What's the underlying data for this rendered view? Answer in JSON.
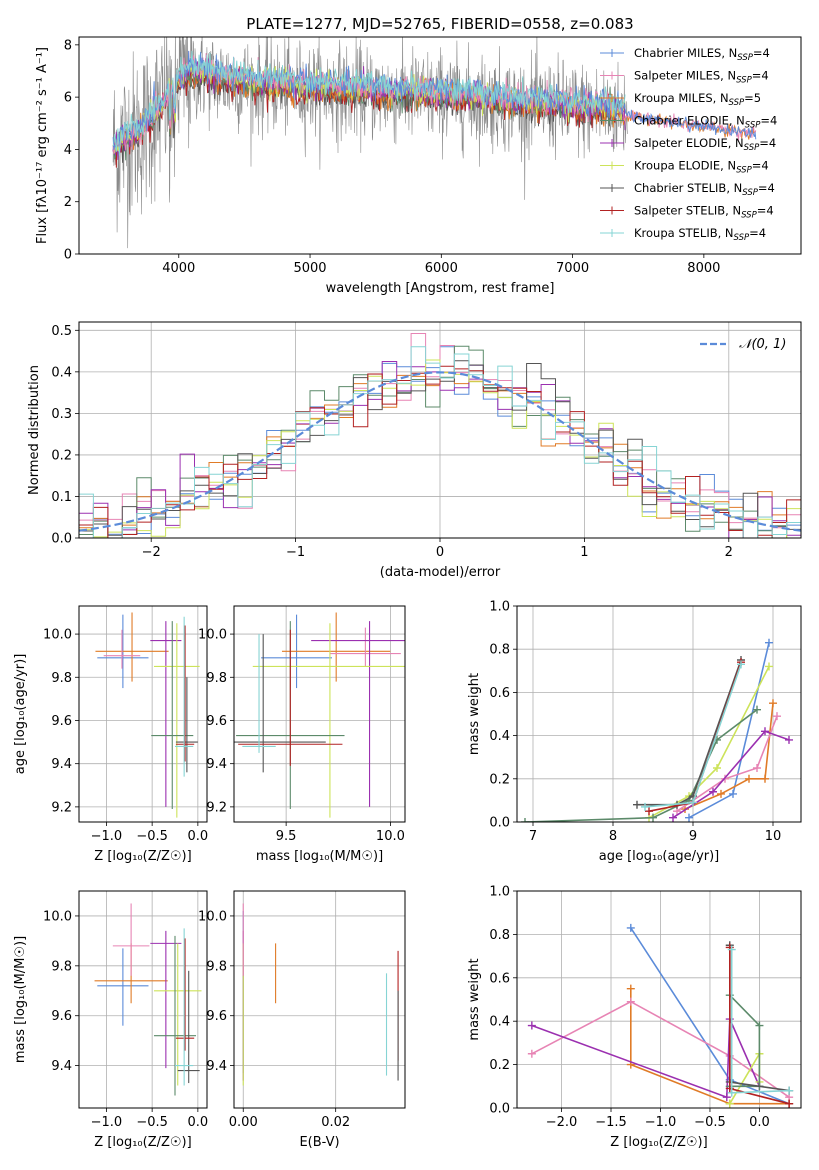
{
  "figure_title": "PLATE=1277, MJD=52765, FIBERID=0558, z=0.083",
  "colors": {
    "chabrier_miles": "#5b8bd9",
    "salpeter_miles": "#e784b4",
    "kroupa_miles": "#e07b27",
    "chabrier_elodie": "#5c8a6a",
    "salpeter_elodie": "#9b30b0",
    "kroupa_elodie": "#cde35a",
    "chabrier_stelib": "#555555",
    "salpeter_stelib": "#b22222",
    "kroupa_stelib": "#86d4d4",
    "data": "#8a8a8a",
    "model_cyan": "#7fd6d6",
    "normal_curve": "#5b8bd9",
    "grid": "#b0b0b0"
  },
  "chart_data": [
    {
      "type": "line",
      "panel": "spectrum",
      "title": "PLATE=1277, MJD=52765, FIBERID=0558, z=0.083",
      "xlabel": "wavelength [Angstrom, rest frame]",
      "ylabel": "Flux [fλ10⁻¹⁷ erg cm⁻² s⁻¹ A⁻¹]",
      "xlim": [
        3240,
        8740
      ],
      "ylim": [
        0,
        8.3
      ],
      "xticks": [
        "4000",
        "5000",
        "6000",
        "7000",
        "8000"
      ],
      "yticks": [
        "0",
        "2",
        "4",
        "6",
        "8"
      ],
      "legend_position": "right",
      "legend": [
        {
          "label": "Chabrier MILES, N",
          "sub": "SSP",
          "eq": "=4",
          "color_key": "chabrier_miles"
        },
        {
          "label": "Salpeter MILES, N",
          "sub": "SSP",
          "eq": "=4",
          "color_key": "salpeter_miles"
        },
        {
          "label": "Kroupa MILES, N",
          "sub": "SSP",
          "eq": "=5",
          "color_key": "kroupa_miles"
        },
        {
          "label": "Chabrier ELODIE, N",
          "sub": "SSP",
          "eq": "=4",
          "color_key": "chabrier_elodie"
        },
        {
          "label": "Salpeter ELODIE, N",
          "sub": "SSP",
          "eq": "=4",
          "color_key": "salpeter_elodie"
        },
        {
          "label": "Kroupa ELODIE, N",
          "sub": "SSP",
          "eq": "=4",
          "color_key": "kroupa_elodie"
        },
        {
          "label": "Chabrier STELIB, N",
          "sub": "SSP",
          "eq": "=4",
          "color_key": "chabrier_stelib"
        },
        {
          "label": "Salpeter STELIB, N",
          "sub": "SSP",
          "eq": "=4",
          "color_key": "salpeter_stelib"
        },
        {
          "label": "Kroupa STELIB, N",
          "sub": "SSP",
          "eq": "=4",
          "color_key": "kroupa_stelib"
        }
      ],
      "continuum_x": [
        3500,
        3600,
        3700,
        3800,
        3900,
        4000,
        4100,
        4300,
        4500,
        4700,
        5000,
        5300,
        5600,
        6000,
        6300,
        6600,
        6900,
        7200,
        7400
      ],
      "continuum_y": [
        4.0,
        4.4,
        4.6,
        5.2,
        5.8,
        6.6,
        6.9,
        6.7,
        6.5,
        6.4,
        6.3,
        6.2,
        6.1,
        6.0,
        5.9,
        5.7,
        5.6,
        5.5,
        5.4
      ]
    },
    {
      "type": "bar",
      "panel": "residual_histogram",
      "xlabel": "(data-model)/error",
      "ylabel": "Normed distribution",
      "xlim": [
        -2.5,
        2.5
      ],
      "ylim": [
        0,
        0.52
      ],
      "xticks": [
        "−2",
        "−1",
        "0",
        "1",
        "2"
      ],
      "yticks": [
        "0.0",
        "0.1",
        "0.2",
        "0.3",
        "0.4",
        "0.5"
      ],
      "legend": [
        {
          "label": "𝒩(0, 1)",
          "color_key": "normal_curve",
          "style": "dashed"
        }
      ],
      "legend_position": "top-right",
      "bin_width": 0.1,
      "normal_mean": 0,
      "normal_sigma": 1
    },
    {
      "type": "scatter",
      "panel": "age_vs_Z",
      "xlabel": "Z [log₁₀(Z/Z☉)]",
      "ylabel": "age  [log₁₀(age/yr)]",
      "xlim": [
        -1.3,
        0.1
      ],
      "ylim": [
        9.13,
        10.13
      ],
      "xticks": [
        "−1.0",
        "−0.5",
        "0.0"
      ],
      "yticks": [
        "9.2",
        "9.4",
        "9.6",
        "9.8",
        "10.0"
      ],
      "points": [
        {
          "x": -0.82,
          "y": 9.89,
          "xerr": 0.28,
          "yerr_lo": 0.14,
          "yerr_hi": 0.2,
          "color_key": "chabrier_miles"
        },
        {
          "x": -0.72,
          "y": 9.92,
          "xerr": 0.4,
          "yerr_lo": 0.14,
          "yerr_hi": 0.18,
          "color_key": "kroupa_miles"
        },
        {
          "x": -0.83,
          "y": 9.9,
          "xerr": 0.2,
          "yerr_lo": 0.06,
          "yerr_hi": 0.12,
          "color_key": "salpeter_miles"
        },
        {
          "x": -0.35,
          "y": 9.97,
          "xerr": 0.17,
          "yerr_lo": 0.77,
          "yerr_hi": 0.09,
          "color_key": "salpeter_elodie"
        },
        {
          "x": -0.23,
          "y": 9.85,
          "xerr": 0.25,
          "yerr_lo": 0.7,
          "yerr_hi": 0.2,
          "color_key": "kroupa_elodie"
        },
        {
          "x": -0.28,
          "y": 9.53,
          "xerr": 0.23,
          "yerr_lo": 0.34,
          "yerr_hi": 0.53,
          "color_key": "chabrier_elodie"
        },
        {
          "x": -0.12,
          "y": 9.5,
          "xerr": 0.12,
          "yerr_lo": 0.14,
          "yerr_hi": 0.3,
          "color_key": "chabrier_stelib"
        },
        {
          "x": -0.14,
          "y": 9.49,
          "xerr": 0.1,
          "yerr_lo": 0.08,
          "yerr_hi": 0.55,
          "color_key": "salpeter_stelib"
        },
        {
          "x": -0.15,
          "y": 9.48,
          "xerr": 0.1,
          "yerr_lo": 0.14,
          "yerr_hi": 0.6,
          "color_key": "kroupa_stelib"
        }
      ]
    },
    {
      "type": "scatter",
      "panel": "age_vs_mass",
      "xlabel": "mass [log₁₀(M/M☉)]",
      "ylabel": "",
      "xlim": [
        9.25,
        10.07
      ],
      "ylim": [
        9.13,
        10.13
      ],
      "xticks": [
        "9.5",
        "10.0"
      ],
      "yticks": [
        "9.2",
        "9.4",
        "9.6",
        "9.8",
        "10.0"
      ],
      "points": [
        {
          "x": 9.55,
          "y": 9.89,
          "xerr": 0.17,
          "yerr_lo": 0.14,
          "yerr_hi": 0.2,
          "color_key": "chabrier_miles"
        },
        {
          "x": 9.74,
          "y": 9.92,
          "xerr": 0.26,
          "yerr_lo": 0.14,
          "yerr_hi": 0.18,
          "color_key": "kroupa_miles"
        },
        {
          "x": 9.88,
          "y": 9.91,
          "xerr": 0.17,
          "yerr_lo": 0.06,
          "yerr_hi": 0.12,
          "color_key": "salpeter_miles"
        },
        {
          "x": 9.9,
          "y": 9.97,
          "xerr": 0.28,
          "yerr_lo": 0.77,
          "yerr_hi": 0.09,
          "color_key": "salpeter_elodie"
        },
        {
          "x": 9.71,
          "y": 9.85,
          "xerr": 0.37,
          "yerr_lo": 0.7,
          "yerr_hi": 0.2,
          "color_key": "kroupa_elodie"
        },
        {
          "x": 9.52,
          "y": 9.53,
          "xerr": 0.26,
          "yerr_lo": 0.34,
          "yerr_hi": 0.53,
          "color_key": "chabrier_elodie"
        },
        {
          "x": 9.39,
          "y": 9.5,
          "xerr": 0.3,
          "yerr_lo": 0.14,
          "yerr_hi": 0.5,
          "color_key": "chabrier_stelib"
        },
        {
          "x": 9.52,
          "y": 9.49,
          "xerr": 0.25,
          "yerr_lo": 0.1,
          "yerr_hi": 0.53,
          "color_key": "salpeter_stelib"
        },
        {
          "x": 9.37,
          "y": 9.48,
          "xerr": 0.08,
          "yerr_lo": 0.03,
          "yerr_hi": 0.52,
          "color_key": "kroupa_stelib"
        }
      ]
    },
    {
      "type": "line",
      "panel": "mass_weight_vs_age",
      "xlabel": "age  [log₁₀(age/yr)]",
      "ylabel": "mass weight",
      "xlim": [
        6.8,
        10.35
      ],
      "ylim": [
        0,
        1.0
      ],
      "xticks": [
        "7",
        "8",
        "9",
        "10"
      ],
      "yticks": [
        "0.0",
        "0.2",
        "0.4",
        "0.6",
        "0.8",
        "1.0"
      ],
      "series": [
        {
          "color_key": "chabrier_miles",
          "x": [
            8.95,
            9.5,
            9.95
          ],
          "y": [
            0.02,
            0.13,
            0.83
          ]
        },
        {
          "color_key": "kroupa_miles",
          "x": [
            8.9,
            9.35,
            9.7,
            9.9,
            10.0
          ],
          "y": [
            0.06,
            0.13,
            0.2,
            0.2,
            0.55
          ]
        },
        {
          "color_key": "salpeter_miles",
          "x": [
            8.8,
            9.4,
            9.8,
            10.05
          ],
          "y": [
            0.05,
            0.2,
            0.25,
            0.49
          ]
        },
        {
          "color_key": "salpeter_elodie",
          "x": [
            8.75,
            9.25,
            9.9,
            10.2
          ],
          "y": [
            0.02,
            0.14,
            0.42,
            0.38
          ]
        },
        {
          "color_key": "kroupa_elodie",
          "x": [
            8.45,
            8.95,
            9.3,
            9.95
          ],
          "y": [
            0.02,
            0.12,
            0.25,
            0.72
          ]
        },
        {
          "color_key": "chabrier_elodie",
          "x": [
            6.9,
            8.5,
            8.95,
            9.3,
            9.8
          ],
          "y": [
            0.0,
            0.02,
            0.1,
            0.38,
            0.52
          ]
        },
        {
          "color_key": "chabrier_stelib",
          "x": [
            8.3,
            8.8,
            9.0,
            9.6
          ],
          "y": [
            0.08,
            0.08,
            0.12,
            0.75
          ]
        },
        {
          "color_key": "salpeter_stelib",
          "x": [
            8.45,
            9.0,
            9.6
          ],
          "y": [
            0.05,
            0.09,
            0.74
          ]
        },
        {
          "color_key": "kroupa_stelib",
          "x": [
            8.4,
            9.0,
            9.6
          ],
          "y": [
            0.07,
            0.09,
            0.73
          ]
        }
      ]
    },
    {
      "type": "scatter",
      "panel": "mass_vs_Z",
      "xlabel": "Z [log₁₀(Z/Z☉)]",
      "ylabel": "mass [log₁₀(M/M☉)]",
      "xlim": [
        -1.3,
        0.1
      ],
      "ylim": [
        9.23,
        10.1
      ],
      "xticks": [
        "−1.0",
        "−0.5",
        "0.0"
      ],
      "yticks": [
        "9.4",
        "9.6",
        "9.8",
        "10.0"
      ],
      "points": [
        {
          "x": -0.82,
          "y": 9.72,
          "xerr": 0.28,
          "yerr_lo": 0.16,
          "yerr_hi": 0.15,
          "color_key": "chabrier_miles"
        },
        {
          "x": -0.73,
          "y": 9.74,
          "xerr": 0.4,
          "yerr_lo": 0.09,
          "yerr_hi": 0.15,
          "color_key": "kroupa_miles"
        },
        {
          "x": -0.73,
          "y": 9.88,
          "xerr": 0.2,
          "yerr_lo": 0.12,
          "yerr_hi": 0.17,
          "color_key": "salpeter_miles"
        },
        {
          "x": -0.35,
          "y": 9.89,
          "xerr": 0.17,
          "yerr_lo": 0.5,
          "yerr_hi": 0.05,
          "color_key": "salpeter_elodie"
        },
        {
          "x": -0.22,
          "y": 9.7,
          "xerr": 0.26,
          "yerr_lo": 0.38,
          "yerr_hi": 0.19,
          "color_key": "kroupa_elodie"
        },
        {
          "x": -0.25,
          "y": 9.52,
          "xerr": 0.23,
          "yerr_lo": 0.24,
          "yerr_hi": 0.4,
          "color_key": "chabrier_elodie"
        },
        {
          "x": -0.1,
          "y": 9.38,
          "xerr": 0.12,
          "yerr_lo": 0.05,
          "yerr_hi": 0.4,
          "color_key": "chabrier_stelib"
        },
        {
          "x": -0.14,
          "y": 9.51,
          "xerr": 0.1,
          "yerr_lo": 0.05,
          "yerr_hi": 0.4,
          "color_key": "salpeter_stelib"
        },
        {
          "x": -0.15,
          "y": 9.4,
          "xerr": 0.1,
          "yerr_lo": 0.08,
          "yerr_hi": 0.55,
          "color_key": "kroupa_stelib"
        }
      ]
    },
    {
      "type": "scatter",
      "panel": "mass_vs_ebv",
      "xlabel": "E(B-V)",
      "ylabel": "",
      "xlim": [
        -0.002,
        0.035
      ],
      "ylim": [
        9.23,
        10.1
      ],
      "xticks": [
        "0.00",
        "0.02"
      ],
      "yticks": [
        "9.4",
        "9.6",
        "9.8",
        "10.0"
      ],
      "points": [
        {
          "x": 0.0,
          "y": 9.72,
          "yerr_lo": 0.35,
          "yerr_hi": 0.3,
          "color_key": "chabrier_miles"
        },
        {
          "x": 0.0,
          "y": 9.89,
          "yerr_lo": 0.55,
          "yerr_hi": 0.05,
          "color_key": "salpeter_elodie"
        },
        {
          "x": 0.0,
          "y": 9.7,
          "yerr_lo": 0.38,
          "yerr_hi": 0.19,
          "color_key": "kroupa_elodie"
        },
        {
          "x": 0.0,
          "y": 9.88,
          "yerr_lo": 0.12,
          "yerr_hi": 0.17,
          "color_key": "salpeter_miles"
        },
        {
          "x": 0.007,
          "y": 9.77,
          "yerr_lo": 0.12,
          "yerr_hi": 0.12,
          "color_key": "kroupa_miles"
        },
        {
          "x": 0.031,
          "y": 9.56,
          "yerr_lo": 0.2,
          "yerr_hi": 0.21,
          "color_key": "kroupa_stelib"
        },
        {
          "x": 0.0335,
          "y": 9.64,
          "yerr_lo": 0.22,
          "yerr_hi": 0.22,
          "color_key": "salpeter_stelib"
        },
        {
          "x": 0.0335,
          "y": 9.6,
          "yerr_lo": 0.26,
          "yerr_hi": 0.1,
          "color_key": "chabrier_stelib"
        }
      ]
    },
    {
      "type": "line",
      "panel": "mass_weight_vs_Z",
      "xlabel": "Z [log₁₀(Z/Z☉)]",
      "ylabel": "mass weight",
      "xlim": [
        -2.45,
        0.42
      ],
      "ylim": [
        0,
        1.0
      ],
      "xticks": [
        "−2.0",
        "−1.5",
        "−1.0",
        "−0.5",
        "0.0"
      ],
      "yticks": [
        "0.0",
        "0.2",
        "0.4",
        "0.6",
        "0.8",
        "1.0"
      ],
      "series": [
        {
          "color_key": "chabrier_miles",
          "x": [
            -1.3,
            -0.3,
            0.3
          ],
          "y": [
            0.83,
            0.13,
            0.02
          ]
        },
        {
          "color_key": "kroupa_miles",
          "x": [
            -1.3,
            -1.3,
            -0.3,
            0.3
          ],
          "y": [
            0.55,
            0.2,
            0.02,
            0.02
          ]
        },
        {
          "color_key": "salpeter_miles",
          "x": [
            -2.3,
            -1.3,
            -0.3,
            0.3
          ],
          "y": [
            0.25,
            0.49,
            0.24,
            0.05
          ]
        },
        {
          "color_key": "salpeter_elodie",
          "x": [
            -2.3,
            -0.33,
            -0.3,
            0.0
          ],
          "y": [
            0.38,
            0.05,
            0.41,
            0.1
          ]
        },
        {
          "color_key": "kroupa_elodie",
          "x": [
            -0.3,
            0.0,
            0.0
          ],
          "y": [
            0.02,
            0.25,
            0.12
          ]
        },
        {
          "color_key": "chabrier_elodie",
          "x": [
            -0.3,
            0.0,
            0.0,
            -0.3
          ],
          "y": [
            0.52,
            0.38,
            0.1,
            0.1
          ]
        },
        {
          "color_key": "chabrier_stelib",
          "x": [
            -0.3,
            -0.3,
            0.3
          ],
          "y": [
            0.75,
            0.12,
            0.08
          ]
        },
        {
          "color_key": "salpeter_stelib",
          "x": [
            -0.3,
            -0.3,
            0.3
          ],
          "y": [
            0.74,
            0.09,
            0.02
          ]
        },
        {
          "color_key": "kroupa_stelib",
          "x": [
            -0.28,
            -0.28,
            0.3
          ],
          "y": [
            0.73,
            0.07,
            0.08
          ]
        }
      ]
    }
  ]
}
